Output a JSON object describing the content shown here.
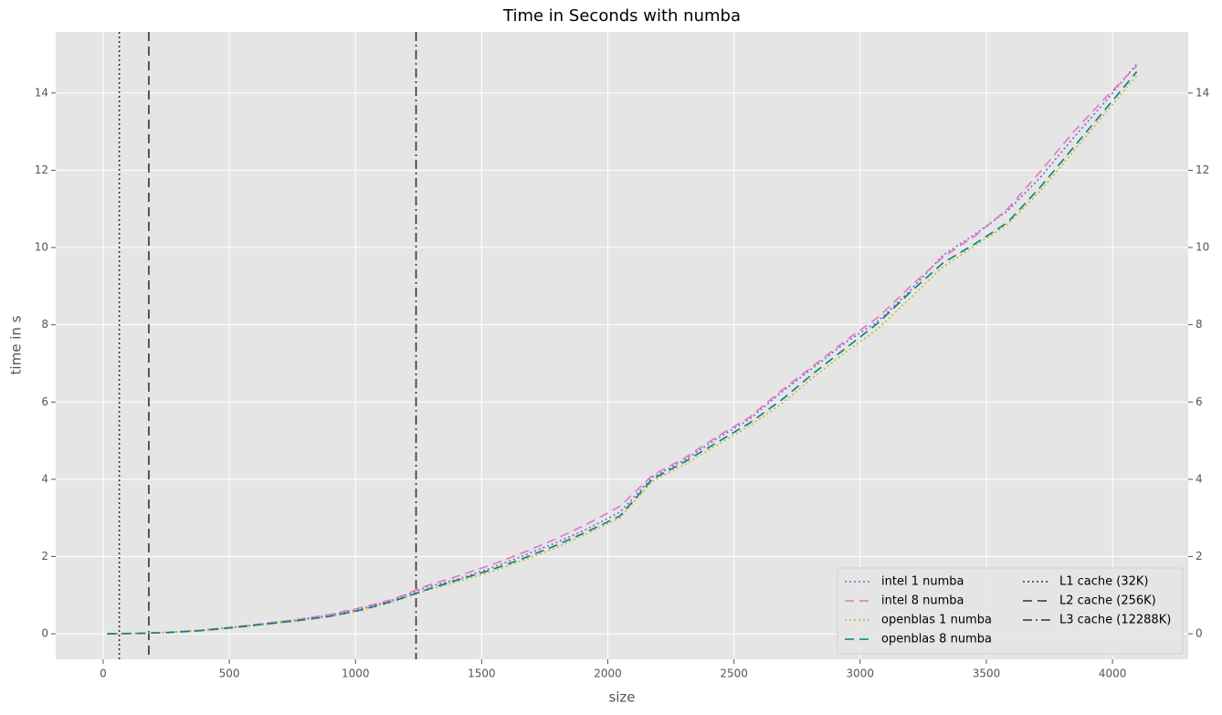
{
  "chart_data": {
    "type": "line",
    "title": "Time in Seconds with numba",
    "xlabel": "size",
    "ylabel": "time in s",
    "x": [
      16,
      128,
      256,
      384,
      512,
      640,
      768,
      896,
      1024,
      1152,
      1280,
      1408,
      1536,
      1664,
      1792,
      1920,
      2048,
      2176,
      2304,
      2432,
      2560,
      2688,
      2816,
      2944,
      3072,
      3200,
      3328,
      3456,
      3584,
      3712,
      3840,
      3968,
      4096
    ],
    "series": [
      {
        "name": "intel 1 numba",
        "color": "#8a5bd6",
        "dash": "dotted",
        "values": [
          0,
          0.01,
          0.04,
          0.09,
          0.17,
          0.26,
          0.36,
          0.48,
          0.65,
          0.88,
          1.2,
          1.42,
          1.7,
          2.02,
          2.35,
          2.72,
          3.15,
          4.05,
          4.5,
          5.05,
          5.55,
          6.25,
          6.9,
          7.55,
          8.1,
          8.9,
          9.8,
          10.35,
          10.95,
          11.8,
          12.8,
          13.75,
          14.75
        ]
      },
      {
        "name": "intel 8 numba",
        "color": "#e377c2",
        "dash": "dashed",
        "values": [
          0,
          0.01,
          0.04,
          0.09,
          0.17,
          0.27,
          0.37,
          0.5,
          0.68,
          0.9,
          1.24,
          1.5,
          1.78,
          2.1,
          2.45,
          2.85,
          3.3,
          4.1,
          4.55,
          5.1,
          5.6,
          6.3,
          6.95,
          7.6,
          8.2,
          9.0,
          9.75,
          10.3,
          11.0,
          11.95,
          12.95,
          13.85,
          14.7
        ]
      },
      {
        "name": "openblas 1 numba",
        "color": "#bcbd22",
        "dash": "dotted",
        "values": [
          0,
          0.01,
          0.03,
          0.08,
          0.15,
          0.24,
          0.33,
          0.44,
          0.6,
          0.83,
          1.12,
          1.36,
          1.6,
          1.9,
          2.22,
          2.6,
          3.0,
          3.95,
          4.38,
          4.88,
          5.38,
          5.95,
          6.65,
          7.3,
          7.9,
          8.7,
          9.5,
          10.05,
          10.6,
          11.45,
          12.45,
          13.45,
          14.45
        ]
      },
      {
        "name": "openblas 8 numba",
        "color": "#008080",
        "dash": "dashed",
        "values": [
          0,
          0.01,
          0.03,
          0.08,
          0.16,
          0.25,
          0.34,
          0.45,
          0.62,
          0.85,
          1.14,
          1.4,
          1.65,
          1.95,
          2.28,
          2.65,
          3.05,
          4.0,
          4.45,
          4.95,
          5.45,
          6.05,
          6.75,
          7.4,
          8.05,
          8.85,
          9.6,
          10.1,
          10.65,
          11.55,
          12.55,
          13.55,
          14.55
        ]
      }
    ],
    "vlines": [
      {
        "name": "L1 cache (32K)",
        "value": 64,
        "color": "#333333",
        "dash": "dotted"
      },
      {
        "name": "L2 cache (256K)",
        "value": 181,
        "color": "#333333",
        "dash": "dashed"
      },
      {
        "name": "L3 cache (12288K)",
        "value": 1240,
        "color": "#333333",
        "dash": "dashdot"
      }
    ],
    "xlim": [
      -188,
      4300
    ],
    "ylim": [
      -0.66,
      15.58
    ],
    "xticks": [
      0,
      500,
      1000,
      1500,
      2000,
      2500,
      3000,
      3500,
      4000
    ],
    "yticks": [
      0,
      2,
      4,
      6,
      8,
      10,
      12,
      14
    ],
    "grid": true,
    "legend": "lower right"
  }
}
